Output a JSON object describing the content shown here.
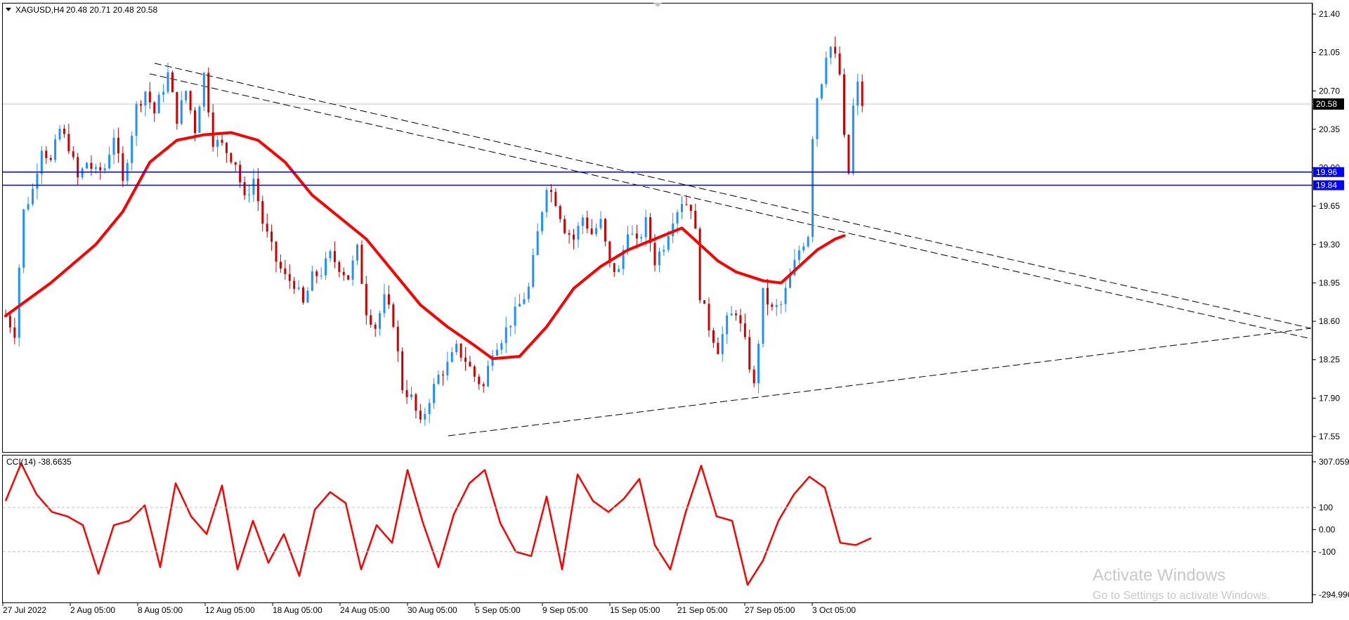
{
  "header": {
    "symbol": "XAGUSD,H4",
    "ohlc": "20.48 20.71 20.48 20.58"
  },
  "indicator": {
    "label": "CCI(14) -38.6635",
    "scale_labels": [
      "307.059",
      "100",
      "0.00",
      "-100",
      "-294.996"
    ]
  },
  "watermark": {
    "line1": "Activate Windows",
    "line2": "Go to Settings to activate Windows."
  },
  "colors": {
    "bull": "#1e90ff",
    "bear": "#cc0000",
    "ma": "#ff0000",
    "hline": "#0000ff",
    "trend": "#000000",
    "price_tag_bg": "#000000",
    "level_tag_bg": "#0000ff"
  },
  "chart_data": [
    {
      "type": "line",
      "title": "XAGUSD,H4",
      "note_type": "candlestick",
      "ylim": [
        17.4,
        21.55
      ],
      "y_ticks": [
        "21.40",
        "21.05",
        "20.70",
        "20.35",
        "20.00",
        "19.65",
        "19.30",
        "18.95",
        "18.60",
        "18.25",
        "17.90",
        "17.55"
      ],
      "x_ticks": [
        "27 Jul 2022",
        "2 Aug 05:00",
        "8 Aug 05:00",
        "12 Aug 05:00",
        "18 Aug 05:00",
        "24 Aug 05:00",
        "30 Aug 05:00",
        "5 Sep 05:00",
        "9 Sep 05:00",
        "15 Sep 05:00",
        "21 Sep 05:00",
        "27 Sep 05:00",
        "3 Oct 05:00"
      ],
      "current_price": "20.58",
      "horizontal_levels": [
        "19.96",
        "19.84"
      ],
      "price_path": [
        [
          0,
          18.65
        ],
        [
          2,
          18.5
        ],
        [
          3,
          19.1
        ],
        [
          4,
          19.6
        ],
        [
          6,
          19.8
        ],
        [
          8,
          20.2
        ],
        [
          10,
          20.05
        ],
        [
          12,
          20.35
        ],
        [
          14,
          20.2
        ],
        [
          16,
          19.9
        ],
        [
          18,
          20.05
        ],
        [
          20,
          19.95
        ],
        [
          22,
          20.0
        ],
        [
          24,
          20.3
        ],
        [
          26,
          19.85
        ],
        [
          27,
          20.1
        ],
        [
          29,
          20.55
        ],
        [
          31,
          20.7
        ],
        [
          33,
          20.5
        ],
        [
          36,
          20.85
        ],
        [
          38,
          20.45
        ],
        [
          40,
          20.7
        ],
        [
          42,
          20.35
        ],
        [
          44,
          20.85
        ],
        [
          46,
          20.25
        ],
        [
          48,
          20.2
        ],
        [
          51,
          20.05
        ],
        [
          53,
          19.7
        ],
        [
          55,
          19.9
        ],
        [
          57,
          19.5
        ],
        [
          60,
          19.15
        ],
        [
          62,
          19.0
        ],
        [
          64,
          18.95
        ],
        [
          66,
          18.75
        ],
        [
          68,
          19.0
        ],
        [
          70,
          19.05
        ],
        [
          72,
          19.2
        ],
        [
          74,
          19.1
        ],
        [
          76,
          19.0
        ],
        [
          78,
          19.25
        ],
        [
          80,
          18.7
        ],
        [
          82,
          18.55
        ],
        [
          84,
          18.8
        ],
        [
          86,
          18.6
        ],
        [
          88,
          18.0
        ],
        [
          90,
          17.9
        ],
        [
          92,
          17.65
        ],
        [
          94,
          17.9
        ],
        [
          96,
          18.1
        ],
        [
          98,
          18.2
        ],
        [
          100,
          18.35
        ],
        [
          102,
          18.25
        ],
        [
          104,
          18.1
        ],
        [
          106,
          18.0
        ],
        [
          108,
          18.35
        ],
        [
          110,
          18.45
        ],
        [
          112,
          18.6
        ],
        [
          114,
          18.75
        ],
        [
          116,
          18.9
        ],
        [
          118,
          19.4
        ],
        [
          120,
          19.85
        ],
        [
          122,
          19.7
        ],
        [
          124,
          19.45
        ],
        [
          126,
          19.35
        ],
        [
          128,
          19.55
        ],
        [
          130,
          19.4
        ],
        [
          132,
          19.5
        ],
        [
          134,
          19.1
        ],
        [
          136,
          19.05
        ],
        [
          138,
          19.45
        ],
        [
          140,
          19.3
        ],
        [
          142,
          19.5
        ],
        [
          144,
          19.15
        ],
        [
          146,
          19.3
        ],
        [
          148,
          19.55
        ],
        [
          150,
          19.7
        ],
        [
          152,
          19.65
        ],
        [
          153,
          19.4
        ],
        [
          154,
          18.85
        ],
        [
          156,
          18.55
        ],
        [
          158,
          18.35
        ],
        [
          160,
          18.6
        ],
        [
          162,
          18.7
        ],
        [
          164,
          18.4
        ],
        [
          166,
          18.0
        ],
        [
          168,
          18.85
        ],
        [
          170,
          18.7
        ],
        [
          172,
          18.75
        ],
        [
          174,
          19.0
        ],
        [
          176,
          19.25
        ],
        [
          178,
          19.4
        ],
        [
          179,
          20.3
        ],
        [
          180,
          20.65
        ],
        [
          181,
          20.8
        ],
        [
          182,
          21.05
        ],
        [
          183,
          21.1
        ],
        [
          184,
          21.0
        ],
        [
          185,
          20.85
        ],
        [
          186,
          20.25
        ],
        [
          187,
          19.95
        ],
        [
          188,
          20.55
        ],
        [
          189,
          20.75
        ],
        [
          190,
          20.58
        ]
      ],
      "ma_path": [
        [
          0,
          18.65
        ],
        [
          10,
          18.95
        ],
        [
          20,
          19.3
        ],
        [
          26,
          19.6
        ],
        [
          32,
          20.05
        ],
        [
          38,
          20.25
        ],
        [
          44,
          20.3
        ],
        [
          50,
          20.32
        ],
        [
          56,
          20.25
        ],
        [
          62,
          20.05
        ],
        [
          68,
          19.75
        ],
        [
          74,
          19.55
        ],
        [
          80,
          19.35
        ],
        [
          86,
          19.05
        ],
        [
          92,
          18.75
        ],
        [
          98,
          18.55
        ],
        [
          104,
          18.38
        ],
        [
          108,
          18.26
        ],
        [
          114,
          18.28
        ],
        [
          120,
          18.55
        ],
        [
          126,
          18.9
        ],
        [
          132,
          19.1
        ],
        [
          138,
          19.25
        ],
        [
          144,
          19.35
        ],
        [
          150,
          19.45
        ],
        [
          154,
          19.3
        ],
        [
          158,
          19.15
        ],
        [
          162,
          19.05
        ],
        [
          168,
          18.97
        ],
        [
          172,
          18.95
        ],
        [
          176,
          19.1
        ],
        [
          180,
          19.25
        ],
        [
          184,
          19.35
        ],
        [
          186,
          19.38
        ]
      ]
    },
    {
      "type": "line",
      "title": "CCI(14) -38.6635",
      "series": [
        {
          "name": "CCI(14)",
          "values": [
            130,
            300,
            160,
            80,
            60,
            20,
            -200,
            20,
            40,
            110,
            -170,
            210,
            60,
            -20,
            200,
            -180,
            40,
            -150,
            -20,
            -210,
            90,
            170,
            120,
            -180,
            20,
            -60,
            270,
            30,
            -170,
            70,
            210,
            270,
            30,
            -100,
            -120,
            150,
            -180,
            250,
            130,
            80,
            140,
            230,
            -70,
            -180,
            80,
            290,
            60,
            40,
            -250,
            -140,
            40,
            160,
            240,
            190,
            -60,
            -70,
            -38.66
          ]
        }
      ],
      "ylim": [
        -294.996,
        307.059
      ],
      "levels": [
        100,
        0,
        -100
      ]
    }
  ]
}
